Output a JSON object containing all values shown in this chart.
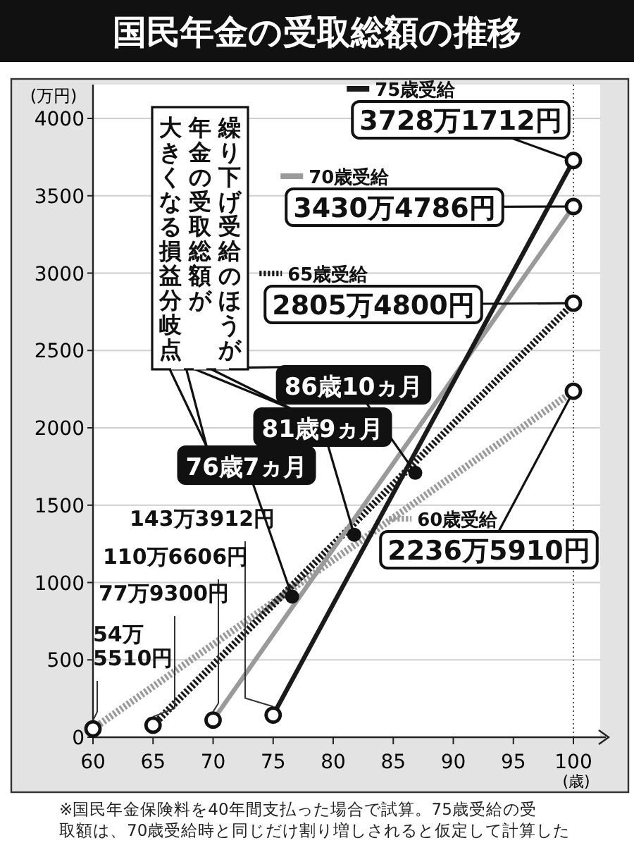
{
  "chart_data": {
    "type": "line",
    "title": "国民年金の受取総額の推移",
    "ylabel": "(万円)",
    "xlabel": "(歳)",
    "xlim": [
      60,
      100
    ],
    "ylim": [
      0,
      4000
    ],
    "xticks": [
      60,
      65,
      70,
      75,
      80,
      85,
      90,
      95,
      100
    ],
    "yticks": [
      0,
      500,
      1000,
      1500,
      2000,
      2500,
      3000,
      3500,
      4000
    ],
    "grid": "y",
    "marker": "circle",
    "series": [
      {
        "name": "60歳受給",
        "color": "#9a9a9a",
        "line_style": "dotted",
        "x": [
          60,
          100
        ],
        "values": [
          54.551,
          2236.591
        ]
      },
      {
        "name": "65歳受給",
        "color": "#1a1a1a",
        "line_style": "dotted",
        "x": [
          65,
          100
        ],
        "values": [
          77.93,
          2805.48
        ]
      },
      {
        "name": "70歳受給",
        "color": "#9a9a9a",
        "line_style": "solid",
        "x": [
          70,
          100
        ],
        "values": [
          110.6606,
          3430.4786
        ]
      },
      {
        "name": "75歳受給",
        "color": "#1a1a1a",
        "line_style": "solid",
        "x": [
          75,
          100
        ],
        "values": [
          143.3912,
          3728.1712
        ]
      },
      {
        "type": "scatter",
        "color": "#111111",
        "x": [
          76.583,
          81.75,
          86.833
        ],
        "values": [
          909,
          1309,
          1709
        ]
      }
    ],
    "legend": "top right",
    "ref_lines": [
      {
        "axis": "x",
        "value": 100,
        "line_style": "dotted",
        "color": "#555555"
      }
    ],
    "annotations": [
      "繰り下げ受給のほうが",
      "年金の受取総額が",
      "大きくなる損益分岐点",
      "※国民年金保険料を40年間支払った場合で試算。75歳受給の受取額は、70歳受給時と同じだけ割り増しされると仮定して計算した",
      {
        "text": "54万5510円",
        "x": 60,
        "y": 54.551
      },
      {
        "text": "77万9300円",
        "x": 65,
        "y": 77.93
      },
      {
        "text": "110万6606円",
        "x": 70,
        "y": 110.6606
      },
      {
        "text": "143万3912円",
        "x": 75,
        "y": 143.3912
      },
      {
        "text": "2236万5910円",
        "x": 100,
        "y": 2236.591
      },
      {
        "text": "2805万4800円",
        "x": 100,
        "y": 2805.48
      },
      {
        "text": "3430万4786円",
        "x": 100,
        "y": 3430.4786
      },
      {
        "text": "3728万1712円",
        "x": 100,
        "y": 3728.1712
      },
      {
        "text": "76歳7ヵ月",
        "x": 76.583,
        "y": 909
      },
      {
        "text": "81歳9ヵ月",
        "x": 81.75,
        "y": 1309
      },
      {
        "text": "86歳10ヵ月",
        "x": 86.833,
        "y": 1709
      }
    ]
  }
}
